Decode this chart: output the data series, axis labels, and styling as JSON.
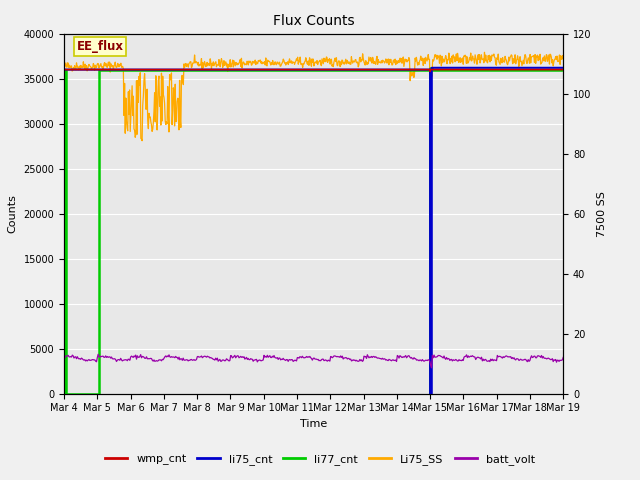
{
  "title": "Flux Counts",
  "xlabel": "Time",
  "ylabel_left": "Counts",
  "ylabel_right": "7500 SS",
  "annotation_text": "EE_flux",
  "xlim": [
    0,
    15
  ],
  "ylim_left": [
    0,
    40000
  ],
  "ylim_right": [
    0,
    120
  ],
  "xtick_labels": [
    "Mar 4",
    "Mar 5",
    "Mar 6",
    "Mar 7",
    "Mar 8",
    "Mar 9",
    "Mar 10",
    "Mar 11",
    "Mar 12",
    "Mar 13",
    "Mar 14",
    "Mar 15",
    "Mar 16",
    "Mar 17",
    "Mar 18",
    "Mar 19"
  ],
  "ytick_left": [
    0,
    5000,
    10000,
    15000,
    20000,
    25000,
    30000,
    35000,
    40000
  ],
  "ytick_right": [
    0,
    20,
    40,
    60,
    80,
    100,
    120
  ],
  "legend_entries": [
    "wmp_cnt",
    "li75_cnt",
    "li77_cnt",
    "Li75_SS",
    "batt_volt"
  ],
  "legend_colors": [
    "#cc0000",
    "#0000cc",
    "#00cc00",
    "#ffaa00",
    "#9900aa"
  ],
  "background_color": "#e8e8e8",
  "fig_background": "#f0f0f0",
  "grid_color": "#ffffff",
  "annotation_text_color": "#8b0000",
  "annotation_box_color": "#ffffcc",
  "annotation_edge_color": "#cccc00",
  "title_fontsize": 10,
  "axis_fontsize": 8,
  "tick_fontsize": 7,
  "legend_fontsize": 8
}
